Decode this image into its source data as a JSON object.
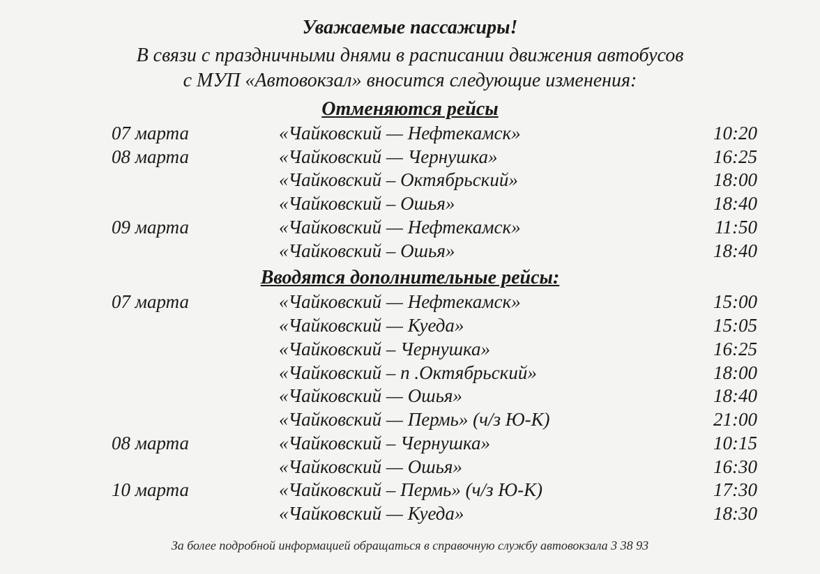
{
  "header": {
    "title": "Уважаемые пассажиры!",
    "line1": "В связи с праздничными днями  в расписании движения автобусов",
    "line2": "с МУП «Автовокзал» вносится следующие изменения:"
  },
  "cancelled": {
    "title": "Отменяются рейсы",
    "rows": [
      {
        "date": "07 марта",
        "route": "«Чайковский — Нефтекамск»",
        "time": "10:20"
      },
      {
        "date": "08 марта",
        "route": "«Чайковский — Чернушка»",
        "time": "16:25"
      },
      {
        "date": "",
        "route": "«Чайковский – Октябрьский»",
        "time": "18:00"
      },
      {
        "date": "",
        "route": "«Чайковский – Ошья»",
        "time": "18:40"
      },
      {
        "date": "09 марта",
        "route": "«Чайковский — Нефтекамск»",
        "time": "11:50"
      },
      {
        "date": "",
        "route": "«Чайковский – Ошья»",
        "time": "18:40"
      }
    ]
  },
  "added": {
    "title": "Вводятся дополнительные рейсы:",
    "rows": [
      {
        "date": "07 марта",
        "route": "«Чайковский — Нефтекамск»",
        "time": "15:00"
      },
      {
        "date": "",
        "route": "«Чайковский — Куеда»",
        "time": "15:05"
      },
      {
        "date": "",
        "route": "«Чайковский – Чернушка»",
        "time": "16:25"
      },
      {
        "date": "",
        "route": "«Чайковский – п .Октябрьский»",
        "time": "18:00"
      },
      {
        "date": "",
        "route": "«Чайковский — Ошья»",
        "time": "18:40"
      },
      {
        "date": "",
        "route": "«Чайковский — Пермь» (ч/з Ю-К)",
        "time": "21:00"
      },
      {
        "date": "08 марта",
        "route": "«Чайковский – Чернушка»",
        "time": "10:15"
      },
      {
        "date": "",
        "route": "«Чайковский — Ошья»",
        "time": "16:30"
      },
      {
        "date": "10 марта",
        "route": "«Чайковский – Пермь» (ч/з Ю-К)",
        "time": "17:30"
      },
      {
        "date": "",
        "route": "«Чайковский — Куеда»",
        "time": "18:30"
      }
    ]
  },
  "footer": "За более подробной информацией обращаться в справочную службу автовокзала  3 38 93",
  "styling": {
    "background_color": "#f4f4f2",
    "text_color": "#1a1a1a",
    "font_family": "Times New Roman",
    "font_style": "italic",
    "title_fontsize": 28,
    "body_fontsize": 27,
    "footer_fontsize": 18
  }
}
